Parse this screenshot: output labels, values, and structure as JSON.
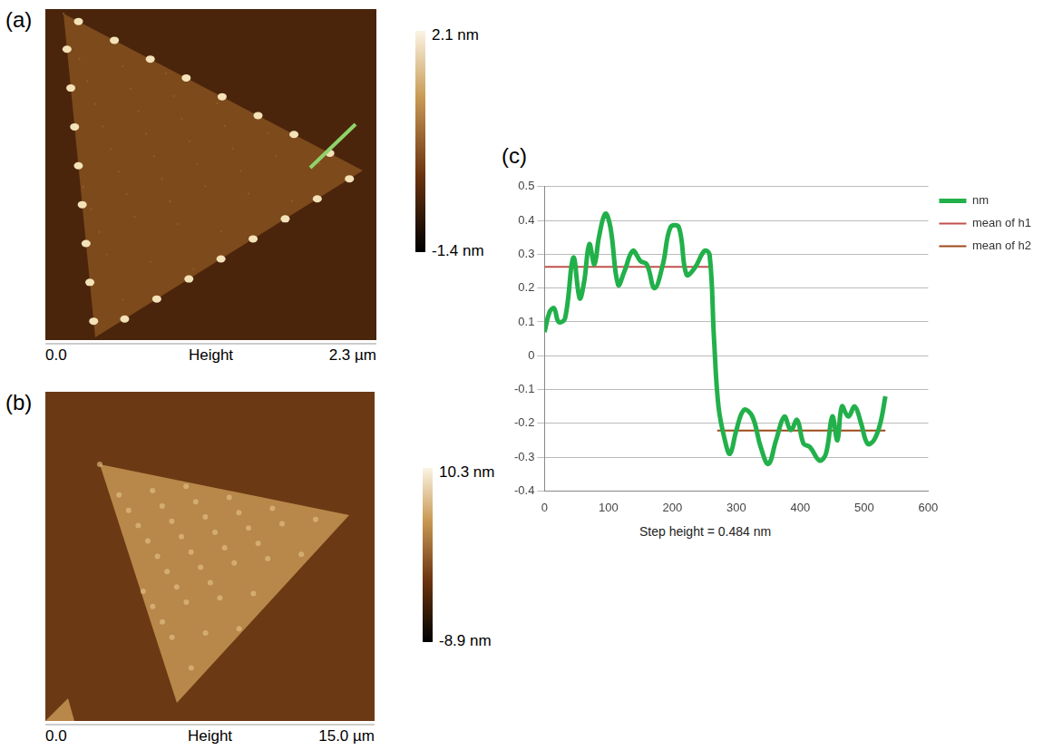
{
  "images": [
    {
      "label": "(a)",
      "colorbar": {
        "range": [
          -1.4,
          2.1
        ],
        "ticks": [
          {
            "value": 2.1,
            "label": "2.1 nm"
          },
          {
            "value": -1.4,
            "label": "-1.4 nm"
          }
        ]
      },
      "x_range": [
        0,
        2.3
      ],
      "x_ticks": [
        {
          "value": 0,
          "label": "0.0"
        },
        {
          "value": 2.3,
          "label": "2.3 µm"
        }
      ],
      "x_title": "Height"
    },
    {
      "label": "(b)",
      "colorbar": {
        "range": [
          -8.9,
          10.3
        ],
        "ticks": [
          {
            "value": 10.3,
            "label": "10.3 nm"
          },
          {
            "value": -8.9,
            "label": "-8.9 nm"
          }
        ]
      },
      "x_range": [
        0,
        15.0
      ],
      "x_ticks": [
        {
          "value": 0,
          "label": "0.0"
        },
        {
          "value": 15.0,
          "label": "15.0 µm"
        }
      ],
      "x_title": "Height"
    }
  ],
  "chart_data": {
    "type": "line",
    "label": "(c)",
    "series": [
      {
        "name": "nm",
        "color": "#22b04a",
        "x": [
          0,
          8,
          15,
          22,
          32,
          45,
          55,
          62,
          70,
          78,
          85,
          95,
          103,
          115,
          125,
          138,
          150,
          160,
          172,
          185,
          197,
          210,
          222,
          235,
          250,
          258,
          265,
          272,
          282,
          290,
          300,
          312,
          325,
          338,
          350,
          362,
          375,
          385,
          395,
          405,
          415,
          430,
          440,
          450,
          458,
          465,
          475,
          485,
          495,
          505,
          515,
          525,
          533
        ],
        "values": [
          0.07,
          0.13,
          0.14,
          0.1,
          0.11,
          0.29,
          0.17,
          0.22,
          0.33,
          0.27,
          0.35,
          0.42,
          0.38,
          0.21,
          0.25,
          0.31,
          0.28,
          0.27,
          0.2,
          0.27,
          0.38,
          0.38,
          0.24,
          0.26,
          0.31,
          0.3,
          0.05,
          -0.15,
          -0.25,
          -0.29,
          -0.22,
          -0.16,
          -0.18,
          -0.27,
          -0.32,
          -0.25,
          -0.18,
          -0.22,
          -0.19,
          -0.26,
          -0.27,
          -0.31,
          -0.29,
          -0.18,
          -0.25,
          -0.15,
          -0.18,
          -0.15,
          -0.2,
          -0.26,
          -0.25,
          -0.2,
          -0.12
        ]
      },
      {
        "name": "mean of h1",
        "color": "#c0504d",
        "x": [
          0,
          260
        ],
        "values": [
          0.263,
          0.263
        ]
      },
      {
        "name": "mean of h2",
        "color": "#9c4a1a",
        "x": [
          270,
          533
        ],
        "values": [
          -0.221,
          -0.221
        ]
      }
    ],
    "xlim": [
      0,
      600
    ],
    "xticks": [
      0,
      100,
      200,
      300,
      400,
      500,
      600
    ],
    "ylim": [
      -0.4,
      0.5
    ],
    "yticks": [
      -0.4,
      -0.3,
      -0.2,
      -0.1,
      0,
      0.1,
      0.2,
      0.3,
      0.4,
      0.5
    ],
    "grid": "y",
    "legend": "right",
    "annotation": "Step height = 0.484 nm"
  }
}
